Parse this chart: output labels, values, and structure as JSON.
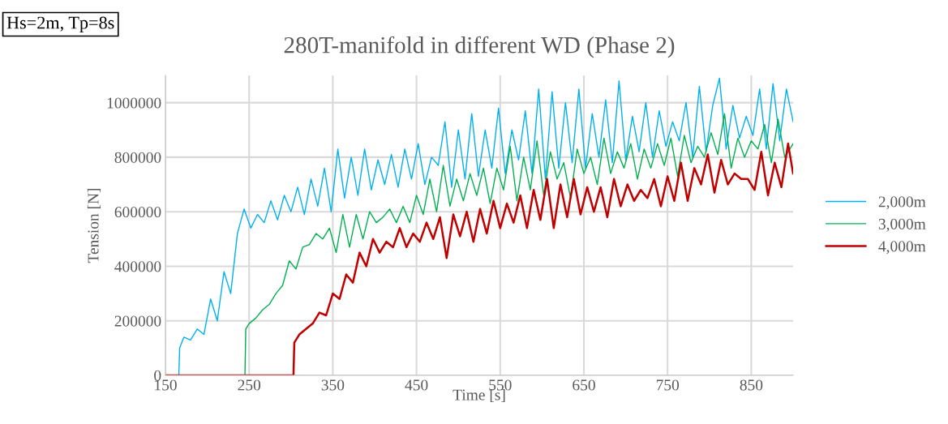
{
  "chart_data": {
    "type": "line",
    "title": "280T-manifold in different WD (Phase 2)",
    "xlabel": "Time [s]",
    "ylabel": "Tension [N]",
    "annotations": [
      "Hs=2m, Tp=8s"
    ],
    "xlim": [
      150,
      900
    ],
    "xticks": [
      150,
      250,
      350,
      450,
      550,
      650,
      750,
      850
    ],
    "ylim": [
      0,
      1100000
    ],
    "yticks": [
      0,
      200000,
      400000,
      600000,
      800000,
      1000000
    ],
    "grid": true,
    "legend": "right",
    "marker": "none",
    "line_style": "solid",
    "series": [
      {
        "name": "2,000m",
        "color": "#00b0f0",
        "x": [
          150,
          166,
          167,
          172,
          180,
          188,
          196,
          204,
          212,
          220,
          228,
          236,
          244,
          252,
          260,
          268,
          276,
          284,
          292,
          300,
          308,
          316,
          324,
          332,
          340,
          348,
          356,
          364,
          372,
          380,
          388,
          396,
          404,
          412,
          420,
          428,
          436,
          444,
          452,
          460,
          468,
          476,
          484,
          492,
          500,
          508,
          516,
          524,
          532,
          540,
          548,
          556,
          564,
          572,
          580,
          588,
          596,
          604,
          612,
          620,
          628,
          636,
          644,
          652,
          660,
          668,
          676,
          684,
          692,
          700,
          708,
          716,
          724,
          732,
          740,
          748,
          756,
          764,
          772,
          780,
          788,
          796,
          804,
          812,
          820,
          828,
          836,
          844,
          852,
          860,
          868,
          876,
          884,
          892,
          900
        ],
        "values": [
          0,
          0,
          100000,
          140000,
          130000,
          170000,
          150000,
          280000,
          200000,
          380000,
          300000,
          520000,
          610000,
          540000,
          590000,
          560000,
          640000,
          570000,
          660000,
          600000,
          690000,
          590000,
          720000,
          620000,
          760000,
          600000,
          830000,
          650000,
          800000,
          660000,
          830000,
          680000,
          790000,
          700000,
          810000,
          690000,
          830000,
          720000,
          850000,
          700000,
          800000,
          770000,
          930000,
          690000,
          900000,
          720000,
          960000,
          730000,
          900000,
          760000,
          980000,
          740000,
          900000,
          790000,
          970000,
          740000,
          1050000,
          720000,
          1040000,
          760000,
          1000000,
          780000,
          1050000,
          760000,
          960000,
          800000,
          1010000,
          780000,
          1080000,
          790000,
          950000,
          820000,
          1000000,
          800000,
          970000,
          840000,
          930000,
          860000,
          1000000,
          800000,
          1060000,
          820000,
          990000,
          1090000,
          830000,
          990000,
          870000,
          950000,
          880000,
          1050000,
          830000,
          1070000,
          860000,
          1050000,
          930000
        ]
      },
      {
        "name": "3,000m",
        "color": "#00b050",
        "x": [
          150,
          245,
          246,
          250,
          258,
          266,
          274,
          282,
          290,
          298,
          306,
          314,
          322,
          330,
          338,
          346,
          354,
          362,
          370,
          378,
          386,
          394,
          402,
          410,
          418,
          426,
          434,
          442,
          450,
          458,
          466,
          474,
          482,
          490,
          498,
          506,
          514,
          522,
          530,
          538,
          546,
          554,
          562,
          570,
          578,
          586,
          594,
          602,
          610,
          618,
          626,
          634,
          642,
          650,
          658,
          666,
          674,
          682,
          690,
          698,
          706,
          714,
          722,
          730,
          738,
          746,
          754,
          762,
          770,
          778,
          786,
          794,
          802,
          810,
          818,
          826,
          834,
          842,
          850,
          858,
          866,
          874,
          882,
          890,
          900
        ],
        "values": [
          0,
          0,
          170000,
          190000,
          210000,
          240000,
          260000,
          300000,
          330000,
          420000,
          390000,
          470000,
          480000,
          520000,
          500000,
          540000,
          450000,
          590000,
          470000,
          590000,
          500000,
          600000,
          560000,
          580000,
          610000,
          560000,
          620000,
          560000,
          660000,
          590000,
          720000,
          600000,
          770000,
          620000,
          720000,
          640000,
          740000,
          660000,
          760000,
          630000,
          760000,
          680000,
          840000,
          640000,
          800000,
          680000,
          860000,
          660000,
          820000,
          720000,
          780000,
          650000,
          830000,
          740000,
          800000,
          700000,
          870000,
          740000,
          820000,
          760000,
          850000,
          720000,
          830000,
          760000,
          850000,
          770000,
          870000,
          730000,
          880000,
          780000,
          840000,
          800000,
          890000,
          810000,
          960000,
          760000,
          870000,
          800000,
          860000,
          830000,
          920000,
          780000,
          940000,
          800000,
          850000
        ]
      },
      {
        "name": "4,000m",
        "color": "#c00000",
        "x": [
          150,
          303,
          304,
          310,
          318,
          326,
          334,
          342,
          350,
          358,
          366,
          374,
          382,
          390,
          398,
          406,
          414,
          422,
          430,
          438,
          446,
          454,
          462,
          470,
          478,
          486,
          494,
          502,
          510,
          518,
          526,
          534,
          542,
          550,
          558,
          566,
          574,
          582,
          590,
          598,
          606,
          614,
          622,
          630,
          638,
          646,
          654,
          662,
          670,
          678,
          686,
          694,
          702,
          710,
          718,
          726,
          734,
          742,
          750,
          758,
          766,
          774,
          782,
          790,
          798,
          806,
          814,
          822,
          830,
          838,
          846,
          854,
          862,
          870,
          878,
          886,
          894,
          900
        ],
        "values": [
          0,
          0,
          120000,
          150000,
          170000,
          190000,
          230000,
          220000,
          300000,
          280000,
          370000,
          340000,
          450000,
          400000,
          500000,
          450000,
          490000,
          470000,
          540000,
          470000,
          520000,
          490000,
          560000,
          500000,
          580000,
          430000,
          590000,
          510000,
          600000,
          490000,
          610000,
          520000,
          640000,
          540000,
          630000,
          560000,
          660000,
          540000,
          680000,
          570000,
          720000,
          540000,
          700000,
          580000,
          720000,
          590000,
          690000,
          600000,
          690000,
          580000,
          720000,
          620000,
          700000,
          640000,
          680000,
          650000,
          720000,
          620000,
          730000,
          640000,
          780000,
          640000,
          760000,
          700000,
          810000,
          670000,
          790000,
          700000,
          740000,
          720000,
          720000,
          680000,
          820000,
          660000,
          780000,
          690000,
          850000,
          740000
        ]
      }
    ]
  }
}
